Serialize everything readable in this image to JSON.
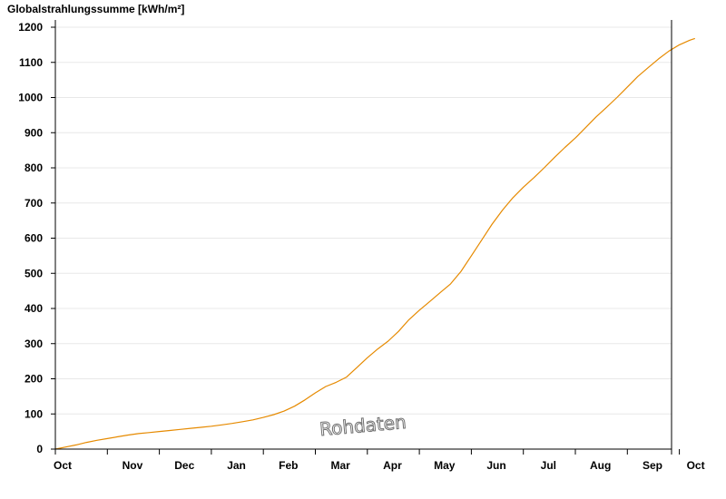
{
  "chart_data": {
    "type": "line",
    "title": "Globalstrahlungssumme [kWh/m²]",
    "ylabel": "",
    "xlabel": "",
    "ylim": [
      0,
      1200
    ],
    "yticks": [
      0,
      100,
      200,
      300,
      400,
      500,
      600,
      700,
      800,
      900,
      1000,
      1100,
      1200
    ],
    "xlim": [
      0,
      12.3
    ],
    "xtick_labels": [
      "Oct",
      "Nov",
      "Dec",
      "Jan",
      "Feb",
      "Mar",
      "Apr",
      "May",
      "Jun",
      "Jul",
      "Aug",
      "Sep",
      "Oct"
    ],
    "xtick_positions": [
      0,
      1,
      2,
      3,
      4,
      5,
      6,
      7,
      8,
      9,
      10,
      11,
      12
    ],
    "x_unit": "months (0 = Oct)",
    "grid": "horizontal",
    "legend": "none",
    "series": [
      {
        "color": "#e68a00",
        "x": [
          0,
          0.2,
          0.4,
          0.6,
          0.8,
          1.0,
          1.2,
          1.4,
          1.6,
          1.8,
          2.0,
          2.2,
          2.4,
          2.6,
          2.8,
          3.0,
          3.2,
          3.4,
          3.6,
          3.8,
          4.0,
          4.2,
          4.4,
          4.6,
          4.8,
          5.0,
          5.2,
          5.4,
          5.6,
          5.8,
          6.0,
          6.2,
          6.4,
          6.6,
          6.8,
          7.0,
          7.2,
          7.4,
          7.6,
          7.8,
          8.0,
          8.2,
          8.4,
          8.6,
          8.8,
          9.0,
          9.2,
          9.4,
          9.6,
          9.8,
          10.0,
          10.2,
          10.4,
          10.6,
          10.8,
          11.0,
          11.2,
          11.4,
          11.6,
          11.8,
          12.0,
          12.2,
          12.3
        ],
        "y": [
          0,
          6,
          12,
          19,
          25,
          30,
          35,
          40,
          44,
          47,
          50,
          53,
          56,
          59,
          62,
          65,
          69,
          73,
          78,
          83,
          90,
          98,
          108,
          122,
          140,
          160,
          178,
          190,
          205,
          232,
          260,
          285,
          307,
          335,
          368,
          395,
          420,
          445,
          470,
          505,
          550,
          595,
          640,
          680,
          715,
          745,
          772,
          800,
          830,
          858,
          885,
          915,
          945,
          972,
          1000,
          1030,
          1060,
          1085,
          1110,
          1132,
          1150,
          1163,
          1168
        ]
      }
    ],
    "watermark": "Rohdaten"
  },
  "colors": {
    "line": "#e68a00",
    "grid": "#e8e8e8",
    "axis": "#000000"
  }
}
